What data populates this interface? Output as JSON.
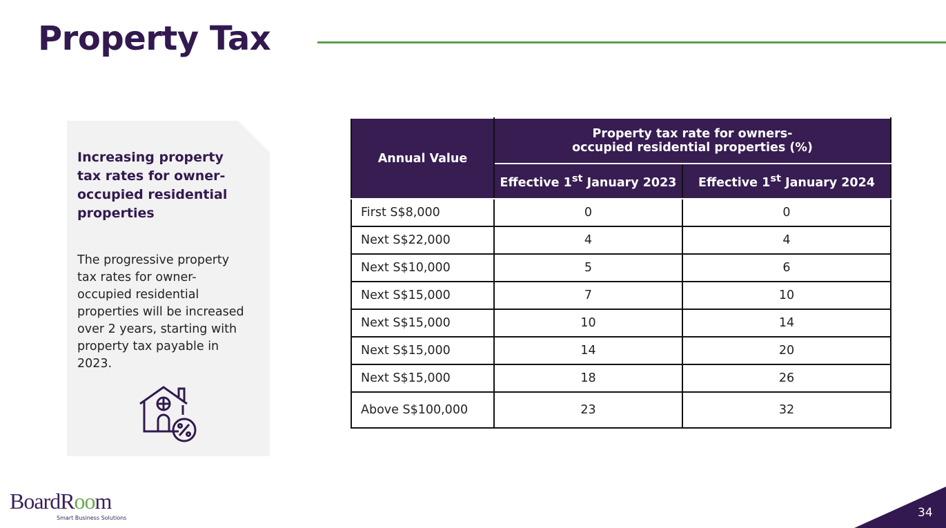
{
  "header": {
    "title": "Property Tax"
  },
  "sidebar": {
    "heading": "Increasing property tax rates for owner-occupied residential properties",
    "body": "The progressive property tax rates for owner-occupied residential properties will be increased over 2 years, starting with property tax payable in 2023."
  },
  "table": {
    "header": {
      "first": "Annual Value",
      "group": "Property tax rate for owners-occupied residential properties (%)",
      "columns": [
        {
          "prefix": "Effective 1",
          "sup": "st",
          "suffix": " January 2023"
        },
        {
          "prefix": "Effective 1",
          "sup": "st",
          "suffix": " January 2024"
        }
      ]
    },
    "rows": [
      [
        "First S$8,000",
        0,
        0
      ],
      [
        "Next S$22,000",
        4,
        4
      ],
      [
        "Next S$10,000",
        5,
        6
      ],
      [
        "Next S$15,000",
        7,
        10
      ],
      [
        "Next S$15,000",
        10,
        14
      ],
      [
        "Next S$15,000",
        14,
        20
      ],
      [
        "Next S$15,000",
        18,
        26
      ],
      [
        "Above S$100,000",
        23,
        32
      ]
    ]
  },
  "footer": {
    "logo": {
      "parts": [
        "BoardR",
        "oo",
        "m"
      ],
      "tagline": "Smart Business Solutions"
    },
    "page_number": "34"
  }
}
